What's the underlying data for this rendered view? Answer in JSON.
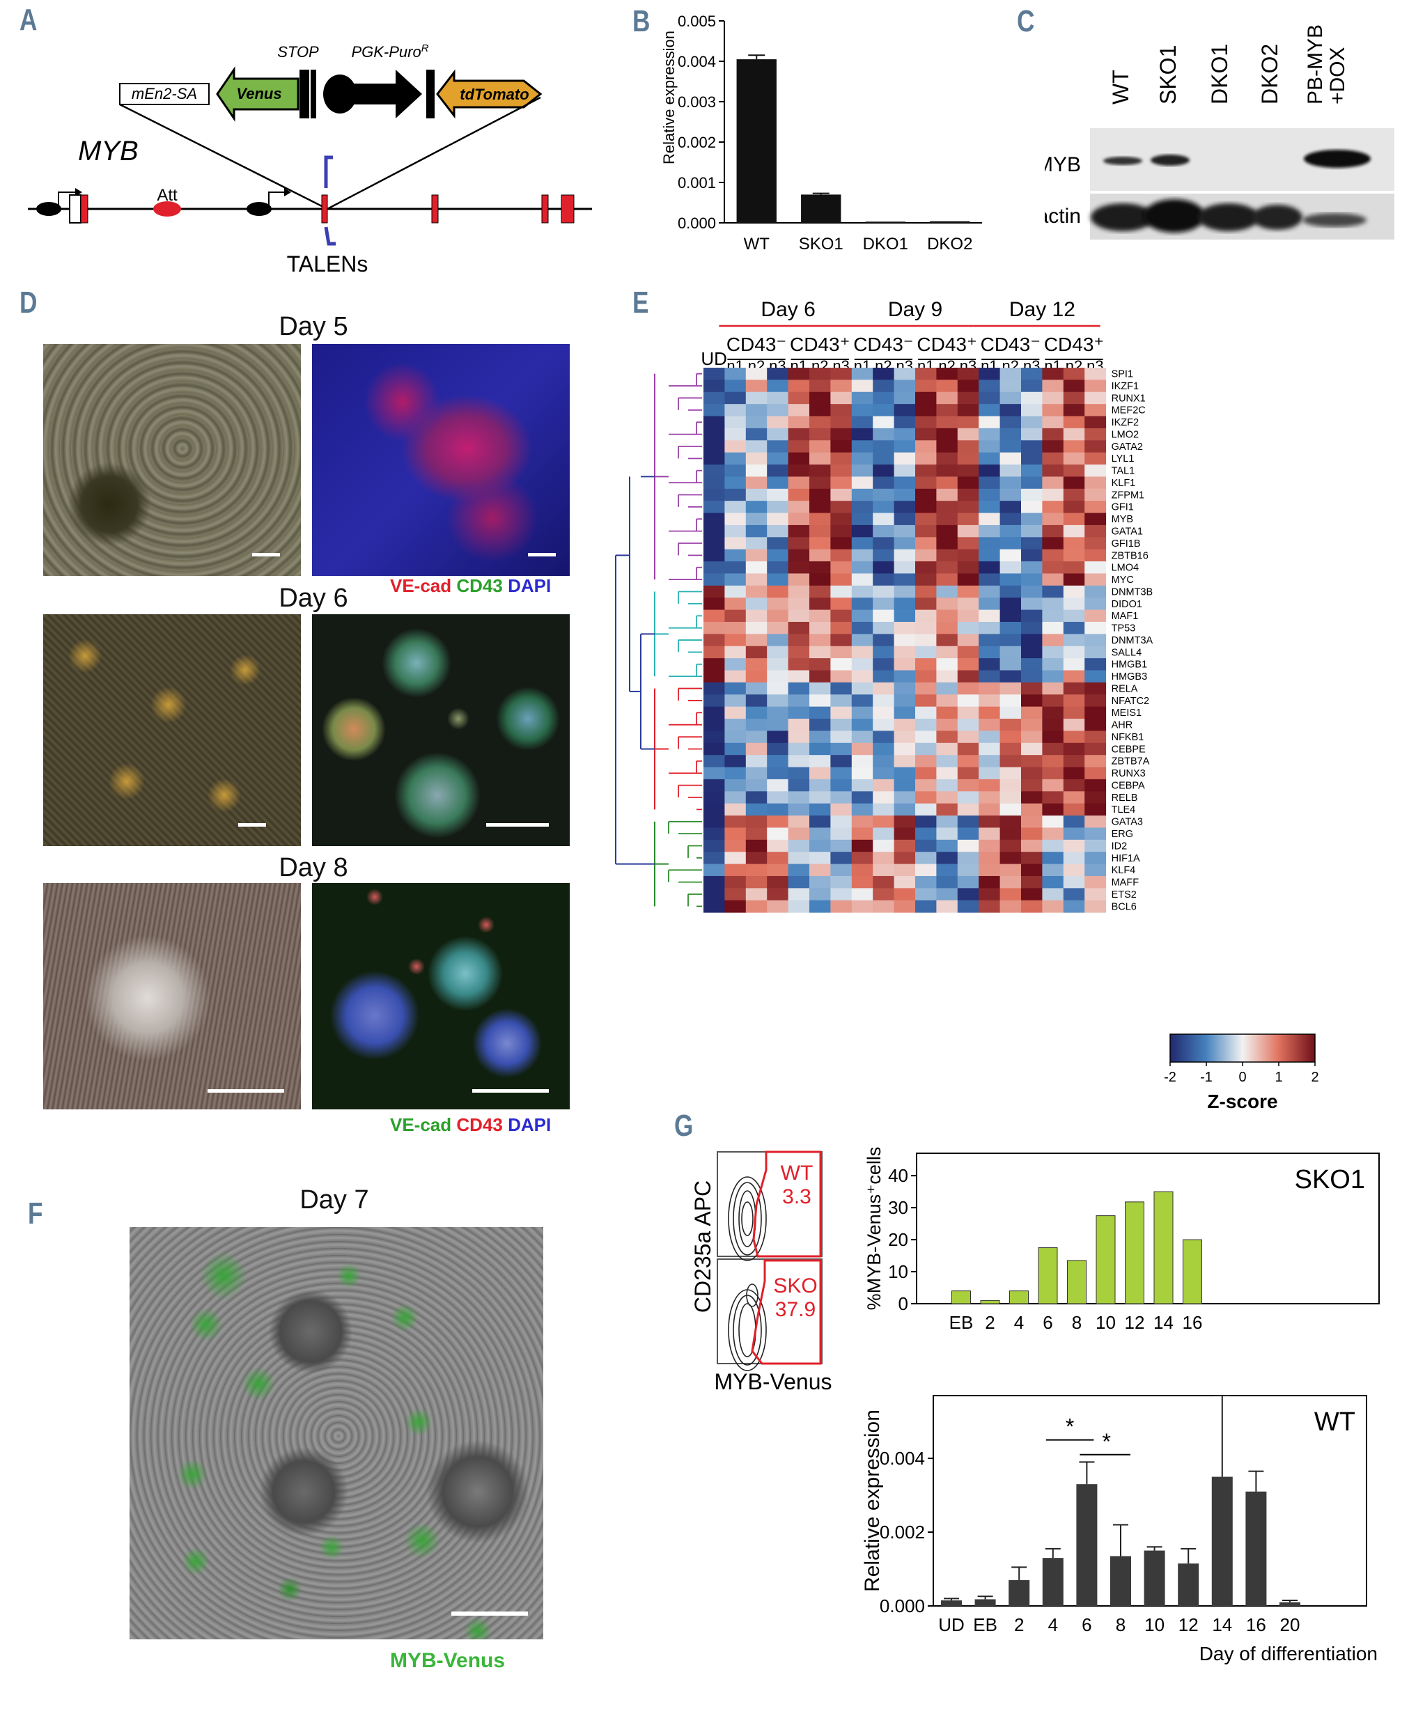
{
  "panels": {
    "A": "A",
    "B": "B",
    "C": "C",
    "D": "D",
    "E": "E",
    "F": "F",
    "G": "G"
  },
  "panel_a": {
    "cassette": {
      "sa": "mEn2-SA",
      "venus": "Venus",
      "stop": "STOP",
      "puro": "PGK-Puro",
      "puro_sup": "R",
      "tdtomato": "tdTomato"
    },
    "gene": "MYB",
    "att": "Att",
    "talens": "TALENs",
    "colors": {
      "venus": "#7ab648",
      "tdtomato": "#e2a12a",
      "exon": "#e0202a",
      "talen": "#3b3fb0"
    }
  },
  "panel_b": {
    "ylabel": "Relative expression",
    "yticks": [
      "0.000",
      "0.001",
      "0.002",
      "0.003",
      "0.004",
      "0.005"
    ]
  },
  "panel_c": {
    "lanes": [
      "WT",
      "SKO1",
      "DKO1",
      "DKO2",
      "PB-MYB\n+DOX"
    ],
    "rows": [
      "MYB",
      "actin"
    ]
  },
  "panel_d": {
    "days": [
      "Day 5",
      "Day 6",
      "Day 8"
    ],
    "legend_top": [
      {
        "text": "VE-cad",
        "color": "#e0202a"
      },
      {
        "text": " CD43",
        "color": "#2aa02a"
      },
      {
        "text": " DAPI",
        "color": "#2a2ad0"
      }
    ],
    "legend_bottom": [
      {
        "text": "VE-cad",
        "color": "#2aa02a"
      },
      {
        "text": " CD43",
        "color": "#e0202a"
      },
      {
        "text": " DAPI",
        "color": "#2a2ad0"
      }
    ]
  },
  "panel_e": {
    "days": [
      "Day 6",
      "Day 9",
      "Day 12"
    ],
    "groups": [
      "CD43⁻",
      "CD43⁺",
      "CD43⁻",
      "CD43⁺",
      "CD43⁻",
      "CD43⁺"
    ],
    "ud": "UD",
    "reps": [
      "n1",
      "n2",
      "n3"
    ],
    "genes": [
      "SPI1",
      "IKZF1",
      "RUNX1",
      "MEF2C",
      "IKZF2",
      "LMO2",
      "GATA2",
      "LYL1",
      "TAL1",
      "KLF1",
      "ZFPM1",
      "GFI1",
      "MYB",
      "GATA1",
      "GFI1B",
      "ZBTB16",
      "LMO4",
      "MYC",
      "DNMT3B",
      "DIDO1",
      "MAF1",
      "TP53",
      "DNMT3A",
      "SALL4",
      "HMGB1",
      "HMGB3",
      "RELA",
      "NFATC2",
      "MEIS1",
      "AHR",
      "NFKB1",
      "CEBPE",
      "ZBTB7A",
      "RUNX3",
      "CEBPA",
      "RELB",
      "TLE4",
      "GATA3",
      "ERG",
      "ID2",
      "HIF1A",
      "KLF4",
      "MAFF",
      "ETS2",
      "BCL6"
    ],
    "colorbar": {
      "ticks": [
        "-2",
        "-1",
        "0",
        "1",
        "2"
      ],
      "label": "Z-score"
    },
    "cluster_colors": [
      "#9b3fa8",
      "#2ab3b3",
      "#e0202a",
      "#2a8a2a",
      "#2a3a9a"
    ]
  },
  "panel_f": {
    "day": "Day 7",
    "label": "MYB-Venus",
    "label_color": "#3ab53a"
  },
  "panel_g": {
    "flow": {
      "ylabel": "CD235a APC",
      "xlabel": "MYB-Venus",
      "wt": "WT",
      "wt_val": "3.3",
      "sko": "SKO",
      "sko_val": "37.9"
    },
    "sko1_title": "SKO1",
    "wt_title": "WT",
    "xlabel": "Day of differentiation",
    "star": "*"
  },
  "chart_data": [
    {
      "type": "bar",
      "ylabel": "Relative expression",
      "categories": [
        "WT",
        "SKO1",
        "DKO1",
        "DKO2"
      ],
      "values": [
        0.00405,
        0.0007,
        3e-05,
        4e-05
      ],
      "errors": [
        0.0001,
        3e-05,
        0.0,
        0.0
      ],
      "ylim": [
        0,
        0.005
      ]
    },
    {
      "type": "bar",
      "title": "SKO1",
      "ylabel": "%MYB-Venus⁺cells",
      "categories": [
        "EB",
        "2",
        "4",
        "6",
        "8",
        "10",
        "12",
        "14",
        "16"
      ],
      "values": [
        4,
        1,
        4,
        17.5,
        13.5,
        27.5,
        31.8,
        35,
        20
      ],
      "yticks": [
        0,
        10,
        20,
        30,
        40
      ],
      "ylim": [
        0,
        47
      ],
      "color": "#a8cf3c"
    },
    {
      "type": "bar",
      "title": "WT",
      "ylabel": "Relative expression",
      "xlabel": "Day of differentiation",
      "categories": [
        "UD",
        "EB",
        "2",
        "4",
        "6",
        "8",
        "10",
        "12",
        "14",
        "16",
        "20"
      ],
      "values": [
        0.00015,
        0.00018,
        0.0007,
        0.0013,
        0.0033,
        0.00135,
        0.0015,
        0.00115,
        0.0035,
        0.0031,
        0.0001
      ],
      "errors": [
        5e-05,
        8e-05,
        0.00035,
        0.00025,
        0.0006,
        0.00085,
        0.0001,
        0.0004,
        0.0022,
        0.00055,
        5e-05
      ],
      "yticks": [
        "0.000",
        "0.002",
        "0.004"
      ],
      "ylim": [
        0,
        0.0057
      ],
      "color": "#3a3a3a"
    }
  ]
}
